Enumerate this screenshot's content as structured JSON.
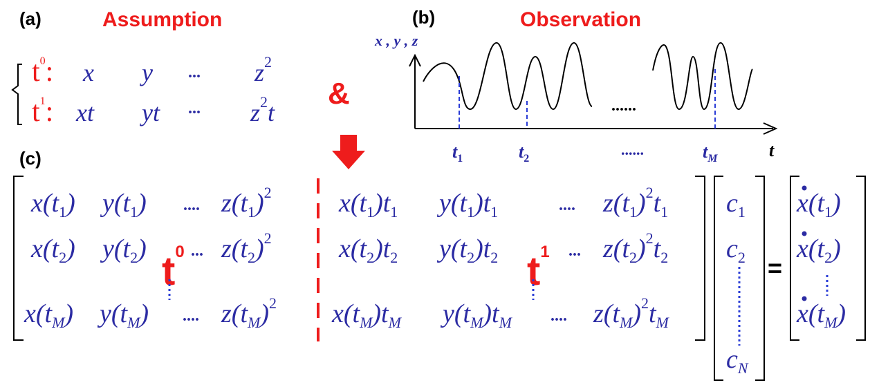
{
  "colors": {
    "red": "#ee1c1c",
    "blue": "#2b2ba3",
    "dash_blue": "#2a3cd6",
    "black": "#000000"
  },
  "panel_a": {
    "label": "(a)",
    "title": "Assumption",
    "row0": {
      "tag_base": "t",
      "tag_exp": "0",
      "colon": ":",
      "t1": "x",
      "t2": "y",
      "dots": "...",
      "t3_base": "z",
      "t3_exp": "2"
    },
    "row1": {
      "tag_base": "t",
      "tag_exp": "1",
      "colon": ":",
      "t1": "xt",
      "t2": "yt",
      "dots": "...",
      "t3_base": "z",
      "t3_exp": "2",
      "t3_tail": "t"
    }
  },
  "connector": {
    "symbol": "&",
    "arrow_icon": "down-arrow-icon"
  },
  "panel_b": {
    "label": "(b)",
    "title": "Observation",
    "y_axis_label": "x , y , z",
    "x_axis_label": "t",
    "gap_dots": "......",
    "tick_labels": [
      {
        "base": "t",
        "sub": "1"
      },
      {
        "base": "t",
        "sub": "2"
      },
      {
        "base": "......",
        "sub": ""
      },
      {
        "base": "t",
        "sub": "M"
      }
    ]
  },
  "panel_c": {
    "label": "(c)",
    "t0_tag": "t",
    "t0_exp": "0",
    "t1_tag": "t",
    "t1_exp": "1",
    "row1": {
      "a": "x(t",
      "a_sub": "1",
      "a_close": ")",
      "b": "y(t",
      "b_sub": "1",
      "b_close": ")",
      "dots": "....",
      "c": "z(t",
      "c_sub": "1",
      "c_close": ")",
      "c_exp": "2",
      "d": "x(t",
      "d_sub": "1",
      "d_mid": ")t",
      "d_sub2": "1",
      "e": "y(t",
      "e_sub": "1",
      "e_mid": ")t",
      "e_sub2": "1",
      "f": "z(t",
      "f_sub": "1",
      "f_mid": ")",
      "f_exp": "2",
      "f_tail": "t",
      "f_sub2": "1"
    },
    "row2": {
      "a": "x(t",
      "a_sub": "2",
      "a_close": ")",
      "b": "y(t",
      "b_sub": "2",
      "b_close": ")",
      "dots": "...",
      "c": "z(t",
      "c_sub": "2",
      "c_close": ")",
      "c_exp": "2",
      "d": "x(t",
      "d_sub": "2",
      "d_mid": ")t",
      "d_sub2": "2",
      "e": "y(t",
      "e_sub": "2",
      "e_mid": ")t",
      "e_sub2": "2",
      "dots2": "...",
      "f": "z(t",
      "f_sub": "2",
      "f_mid": ")",
      "f_exp": "2",
      "f_tail": "t",
      "f_sub2": "2"
    },
    "row3": {
      "a": "x(t",
      "a_sub": "M",
      "a_close": ")",
      "b": "y(t",
      "b_sub": "M",
      "b_close": ")",
      "dots": "....",
      "c": "z(t",
      "c_sub": "M",
      "c_close": ")",
      "c_exp": "2",
      "d": "x(t",
      "d_sub": "M",
      "d_mid": ")t",
      "d_sub2": "M",
      "e": "y(t",
      "e_sub": "M",
      "e_mid": ")t",
      "e_sub2": "M",
      "dots2": "....",
      "f": "z(t",
      "f_sub": "M",
      "f_mid": ")",
      "f_exp": "2",
      "f_tail": "t",
      "f_sub2": "M"
    },
    "coef": [
      {
        "base": "c",
        "sub": "1"
      },
      {
        "base": "c",
        "sub": "2"
      },
      {
        "base": "c",
        "sub": "N"
      }
    ],
    "equals": "=",
    "rhs": [
      {
        "base": "x",
        "mid": "(t",
        "sub": "1",
        "close": ")"
      },
      {
        "base": "x",
        "mid": "(t",
        "sub": "2",
        "close": ")"
      },
      {
        "base": "x",
        "mid": "(t",
        "sub": "M",
        "close": ")"
      }
    ]
  }
}
